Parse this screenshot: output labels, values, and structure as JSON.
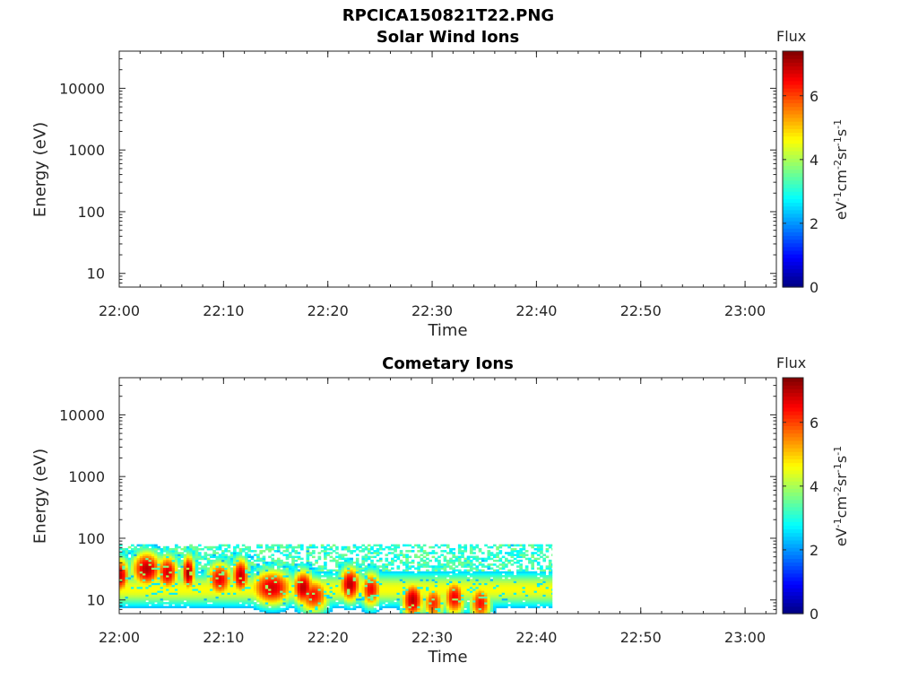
{
  "figure": {
    "title": "RPCICA150821T22.PNG"
  },
  "chart_data": [
    {
      "type": "heatmap",
      "title": "Solar Wind Ions",
      "xlabel": "Time",
      "ylabel": "Energy (eV)",
      "x_ticks": [
        "22:00",
        "22:10",
        "22:20",
        "22:30",
        "22:40",
        "22:50",
        "23:00"
      ],
      "x_range": [
        "22:00",
        "23:03"
      ],
      "y_scale": "log",
      "y_ticks": [
        10,
        100,
        1000,
        10000
      ],
      "y_tick_labels": [
        "10",
        "100",
        "1000",
        "10000"
      ],
      "y_range": [
        6,
        40000
      ],
      "colorbar": {
        "label": "Flux",
        "unit": "eV",
        "unit_tail": "cm",
        "unit_exp": "-1",
        "unit_exp2": "-2",
        "unit_sr": "sr",
        "unit_s": "s",
        "ticks": [
          0,
          2,
          4,
          6
        ],
        "tick_labels": [
          "0",
          "2",
          "4",
          "6"
        ],
        "range": [
          0,
          7.4
        ],
        "colormap": "jet"
      },
      "data_summary": "No flux recorded"
    },
    {
      "type": "heatmap",
      "title": "Cometary Ions",
      "xlabel": "Time",
      "ylabel": "Energy (eV)",
      "x_ticks": [
        "22:00",
        "22:10",
        "22:20",
        "22:30",
        "22:40",
        "22:50",
        "23:00"
      ],
      "x_range": [
        "22:00",
        "23:03"
      ],
      "y_scale": "log",
      "y_ticks": [
        10,
        100,
        1000,
        10000
      ],
      "y_tick_labels": [
        "10",
        "100",
        "1000",
        "10000"
      ],
      "y_range": [
        6,
        40000
      ],
      "colorbar": {
        "label": "Flux",
        "unit": "eV",
        "unit_tail": "cm",
        "unit_exp": "-1",
        "unit_exp2": "-2",
        "unit_sr": "sr",
        "unit_s": "s",
        "ticks": [
          0,
          2,
          4,
          6
        ],
        "tick_labels": [
          "0",
          "2",
          "4",
          "6"
        ],
        "range": [
          0,
          7.4
        ],
        "colormap": "jet"
      },
      "data_window": {
        "start": "22:00",
        "end": "22:41.5",
        "energy_min": 6,
        "energy_max": 80
      },
      "bursts": [
        {
          "t": 22.0,
          "e": 25,
          "w": 0.8,
          "a": 6.8
        },
        {
          "t": 24.5,
          "e": 32,
          "w": 1.4,
          "a": 7.0
        },
        {
          "t": 26.5,
          "e": 28,
          "w": 1.0,
          "a": 6.8
        },
        {
          "t": 28.5,
          "e": 28,
          "w": 0.6,
          "a": 7.2
        },
        {
          "t": 31.5,
          "e": 22,
          "w": 1.2,
          "a": 6.6
        },
        {
          "t": 33.5,
          "e": 25,
          "w": 0.8,
          "a": 7.0
        },
        {
          "t": 36.5,
          "e": 16,
          "w": 2.0,
          "a": 6.8
        },
        {
          "t": 39.5,
          "e": 16,
          "w": 1.0,
          "a": 7.0
        },
        {
          "t": 40.5,
          "e": 12,
          "w": 1.5,
          "a": 6.4
        },
        {
          "t": 44.0,
          "e": 18,
          "w": 1.0,
          "a": 7.0
        },
        {
          "t": 46.0,
          "e": 15,
          "w": 1.0,
          "a": 6.5
        },
        {
          "t": 50.0,
          "e": 10,
          "w": 1.0,
          "a": 7.0
        },
        {
          "t": 52.0,
          "e": 9,
          "w": 1.0,
          "a": 6.2
        },
        {
          "t": 54.0,
          "e": 11,
          "w": 1.0,
          "a": 6.6
        },
        {
          "t": 56.5,
          "e": 9,
          "w": 1.0,
          "a": 6.4
        }
      ]
    }
  ]
}
